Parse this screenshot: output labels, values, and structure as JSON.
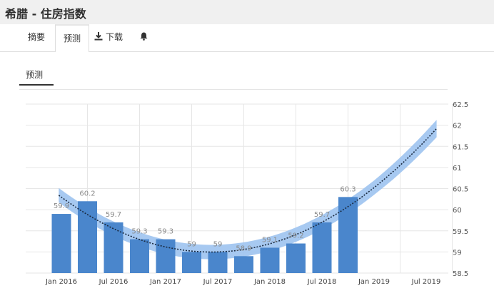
{
  "header": {
    "title": "希腊 - 住房指数"
  },
  "tabs": [
    {
      "label": "摘要",
      "icon": ""
    },
    {
      "label": "预测",
      "icon": ""
    },
    {
      "label": "下载",
      "icon": "download-icon"
    },
    {
      "label": "",
      "icon": "bell-icon"
    }
  ],
  "subtab": {
    "label": "预测"
  },
  "colors": {
    "bar": "#4a86cc",
    "band": "#9dc3ef",
    "trend": "#1a2a40",
    "label": "#8a8a8a",
    "grid": "#e6e6e6"
  },
  "chart_data": {
    "type": "bar",
    "title": "",
    "xlabel": "",
    "ylabel": "",
    "ylim": [
      58.5,
      62.5
    ],
    "yticks": [
      58.5,
      59,
      59.5,
      60,
      60.5,
      61,
      61.5,
      62,
      62.5
    ],
    "x_tick_labels": [
      "Jan 2016",
      "Jul 2016",
      "Jan 2017",
      "Jul 2017",
      "Jan 2018",
      "Jul 2018",
      "Jan 2019",
      "Jul 2019"
    ],
    "categories": [
      "2016Q1",
      "2016Q2",
      "2016Q3",
      "2016Q4",
      "2017Q1",
      "2017Q2",
      "2017Q3",
      "2017Q4",
      "2018Q1",
      "2018Q2",
      "2018Q3",
      "2018Q4"
    ],
    "values": [
      59.9,
      60.2,
      59.7,
      59.3,
      59.3,
      59.0,
      59.0,
      58.9,
      59.1,
      59.2,
      59.7,
      60.3
    ],
    "data_labels": [
      "59.9",
      "60.2",
      "59.7",
      "59.3",
      "59.3",
      "59",
      "59",
      "58.9",
      "59.1",
      "59.2",
      "59.7",
      "60.3"
    ],
    "forecast_band": true,
    "trend_line": "dotted",
    "grid": true
  }
}
